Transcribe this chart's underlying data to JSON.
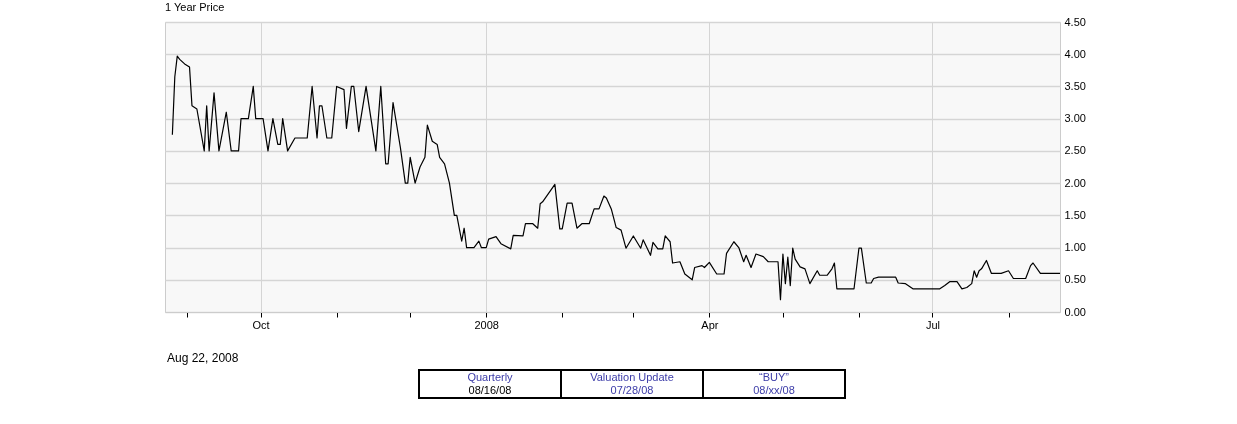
{
  "chart_data": {
    "type": "line",
    "title": "1 Year Price",
    "x": [
      "2007-08-26",
      "2007-08-27",
      "2007-08-28",
      "2007-08-29",
      "2007-08-31",
      "2007-09-02",
      "2007-09-03",
      "2007-09-05",
      "2007-09-08",
      "2007-09-09",
      "2007-09-10",
      "2007-09-12",
      "2007-09-14",
      "2007-09-17",
      "2007-09-19",
      "2007-09-22",
      "2007-09-23",
      "2007-09-26",
      "2007-09-28",
      "2007-09-29",
      "2007-10-02",
      "2007-10-04",
      "2007-10-06",
      "2007-10-08",
      "2007-10-09",
      "2007-10-10",
      "2007-10-12",
      "2007-10-15",
      "2007-10-20",
      "2007-10-22",
      "2007-10-24",
      "2007-10-25",
      "2007-10-26",
      "2007-10-28",
      "2007-10-30",
      "2007-11-01",
      "2007-11-04",
      "2007-11-05",
      "2007-11-07",
      "2007-11-08",
      "2007-11-10",
      "2007-11-13",
      "2007-11-17",
      "2007-11-19",
      "2007-11-21",
      "2007-11-22",
      "2007-11-24",
      "2007-11-27",
      "2007-11-29",
      "2007-11-30",
      "2007-12-01",
      "2007-12-03",
      "2007-12-05",
      "2007-12-07",
      "2007-12-08",
      "2007-12-10",
      "2007-12-12",
      "2007-12-13",
      "2007-12-15",
      "2007-12-17",
      "2007-12-19",
      "2007-12-20",
      "2007-12-22",
      "2007-12-23",
      "2007-12-24",
      "2007-12-27",
      "2007-12-29",
      "2007-12-30",
      "2008-01-01",
      "2008-01-02",
      "2008-01-05",
      "2008-01-07",
      "2008-01-11",
      "2008-01-12",
      "2008-01-16",
      "2008-01-17",
      "2008-01-20",
      "2008-01-22",
      "2008-01-23",
      "2008-01-24",
      "2008-01-29",
      "2008-01-31",
      "2008-02-01",
      "2008-02-03",
      "2008-02-05",
      "2008-02-07",
      "2008-02-09",
      "2008-02-12",
      "2008-02-14",
      "2008-02-16",
      "2008-02-18",
      "2008-02-19",
      "2008-02-21",
      "2008-02-23",
      "2008-02-25",
      "2008-02-27",
      "2008-03-01",
      "2008-03-04",
      "2008-03-05",
      "2008-03-08",
      "2008-03-09",
      "2008-03-11",
      "2008-03-13",
      "2008-03-14",
      "2008-03-16",
      "2008-03-17",
      "2008-03-20",
      "2008-03-22",
      "2008-03-25",
      "2008-03-26",
      "2008-03-29",
      "2008-03-30",
      "2008-04-01",
      "2008-04-04",
      "2008-04-07",
      "2008-04-08",
      "2008-04-11",
      "2008-04-13",
      "2008-04-15",
      "2008-04-16",
      "2008-04-18",
      "2008-04-20",
      "2008-04-23",
      "2008-04-25",
      "2008-04-29",
      "2008-04-30",
      "2008-05-01",
      "2008-05-02",
      "2008-05-03",
      "2008-05-04",
      "2008-05-05",
      "2008-05-06",
      "2008-05-08",
      "2008-05-10",
      "2008-05-12",
      "2008-05-15",
      "2008-05-16",
      "2008-05-19",
      "2008-05-21",
      "2008-05-22",
      "2008-05-23",
      "2008-05-30",
      "2008-06-01",
      "2008-06-02",
      "2008-06-04",
      "2008-06-06",
      "2008-06-07",
      "2008-06-09",
      "2008-06-16",
      "2008-06-17",
      "2008-06-20",
      "2008-06-23",
      "2008-07-04",
      "2008-07-06",
      "2008-07-08",
      "2008-07-11",
      "2008-07-13",
      "2008-07-15",
      "2008-07-17",
      "2008-07-18",
      "2008-07-19",
      "2008-07-20",
      "2008-07-21",
      "2008-07-23",
      "2008-07-25",
      "2008-07-29",
      "2008-08-01",
      "2008-08-03",
      "2008-08-08",
      "2008-08-10",
      "2008-08-11",
      "2008-08-14",
      "2008-08-22"
    ],
    "series": [
      {
        "color": "#000000",
        "values": [
          2.75,
          3.65,
          3.97,
          3.92,
          3.85,
          3.8,
          3.2,
          3.15,
          2.5,
          3.2,
          2.5,
          3.4,
          2.5,
          3.1,
          2.5,
          2.5,
          3.0,
          3.0,
          3.5,
          3.0,
          3.0,
          2.5,
          3.0,
          2.6,
          2.6,
          3.0,
          2.5,
          2.7,
          2.7,
          3.5,
          2.7,
          3.2,
          3.2,
          2.7,
          2.7,
          3.5,
          3.45,
          2.85,
          3.5,
          3.5,
          2.8,
          3.5,
          2.5,
          3.5,
          2.3,
          2.3,
          3.25,
          2.55,
          2.0,
          2.0,
          2.4,
          2.0,
          2.25,
          2.4,
          2.9,
          2.65,
          2.6,
          2.4,
          2.3,
          2.0,
          1.5,
          1.5,
          1.1,
          1.3,
          1.0,
          1.0,
          1.1,
          1.0,
          1.0,
          1.13,
          1.17,
          1.06,
          0.98,
          1.19,
          1.18,
          1.37,
          1.37,
          1.3,
          1.68,
          1.71,
          1.98,
          1.29,
          1.29,
          1.69,
          1.69,
          1.3,
          1.37,
          1.37,
          1.6,
          1.6,
          1.8,
          1.77,
          1.6,
          1.31,
          1.27,
          0.99,
          1.18,
          0.99,
          1.12,
          0.88,
          1.08,
          0.98,
          0.98,
          1.18,
          1.09,
          0.76,
          0.78,
          0.59,
          0.5,
          0.69,
          0.72,
          0.69,
          0.77,
          0.59,
          0.59,
          0.91,
          1.09,
          1.0,
          0.78,
          0.88,
          0.69,
          0.9,
          0.86,
          0.78,
          0.78,
          0.19,
          0.9,
          0.44,
          0.85,
          0.41,
          0.99,
          0.82,
          0.7,
          0.67,
          0.44,
          0.64,
          0.57,
          0.57,
          0.67,
          0.76,
          0.36,
          0.36,
          0.99,
          0.99,
          0.45,
          0.45,
          0.52,
          0.54,
          0.54,
          0.45,
          0.44,
          0.36,
          0.36,
          0.41,
          0.47,
          0.47,
          0.36,
          0.38,
          0.44,
          0.64,
          0.54,
          0.64,
          0.67,
          0.8,
          0.6,
          0.6,
          0.64,
          0.52,
          0.52,
          0.72,
          0.76,
          0.6,
          0.6
        ]
      }
    ],
    "xlim": [
      "2007-08-23",
      "2008-08-22"
    ],
    "xticks": [
      {
        "value": "2007-09-01",
        "label": null
      },
      {
        "value": "2007-10-01",
        "label": "Oct"
      },
      {
        "value": "2007-11-01",
        "label": null
      },
      {
        "value": "2007-12-01",
        "label": null
      },
      {
        "value": "2008-01-01",
        "label": "2008"
      },
      {
        "value": "2008-02-01",
        "label": null
      },
      {
        "value": "2008-03-01",
        "label": null
      },
      {
        "value": "2008-04-01",
        "label": "Apr"
      },
      {
        "value": "2008-05-01",
        "label": null
      },
      {
        "value": "2008-06-01",
        "label": null
      },
      {
        "value": "2008-07-01",
        "label": "Jul"
      },
      {
        "value": "2008-08-01",
        "label": null
      }
    ],
    "ylim": [
      0,
      4.5
    ],
    "yticks": [
      {
        "value": 0,
        "label": "0.00"
      },
      {
        "value": 0.5,
        "label": "0.50"
      },
      {
        "value": 1,
        "label": "1.00"
      },
      {
        "value": 1.5,
        "label": "1.50"
      },
      {
        "value": 2,
        "label": "2.00"
      },
      {
        "value": 2.5,
        "label": "2.50"
      },
      {
        "value": 3,
        "label": "3.00"
      },
      {
        "value": 3.5,
        "label": "3.50"
      },
      {
        "value": 4,
        "label": "4.00"
      },
      {
        "value": 4.5,
        "label": "4.50"
      }
    ],
    "grid": true,
    "line_style": "solid",
    "marker": "none",
    "annotations": [
      "Aug 22, 2008",
      "Quarterly",
      "08/16/08",
      "Valuation Update",
      "07/28/08",
      "“BUY”",
      "08/xx/08"
    ]
  }
}
